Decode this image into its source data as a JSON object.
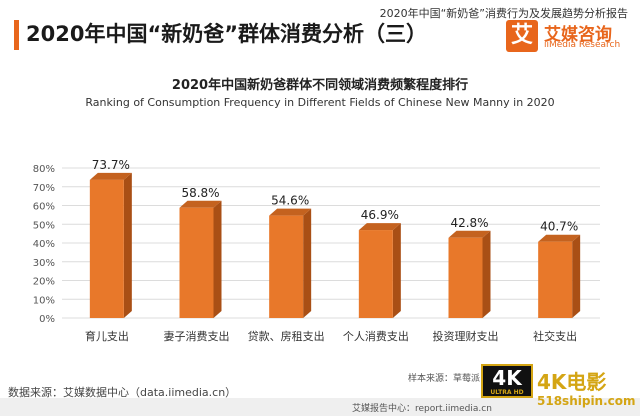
{
  "header": {
    "title": "2020年中国“新奶爸”群体消费分析（三）",
    "report_title": "2020年中国“新奶爸”消费行为及发展趋势分析报告",
    "logo_name": "艾媒咨询",
    "logo_en": "iiMedia Research",
    "logo_mark": "艾"
  },
  "chart_data": {
    "type": "bar",
    "title": "2020年中国新奶爸群体不同领域消费频繁程度排行",
    "subtitle": "Ranking of Consumption Frequency in Different Fields of Chinese New Manny in 2020",
    "categories": [
      "育儿支出",
      "妻子消费支出",
      "贷款、房租支出",
      "个人消费支出",
      "投资理财支出",
      "社交支出"
    ],
    "values": [
      73.7,
      58.8,
      54.6,
      46.9,
      42.8,
      40.7
    ],
    "value_labels": [
      "73.7%",
      "58.8%",
      "54.6%",
      "46.9%",
      "42.8%",
      "40.7%"
    ],
    "yticks": [
      "0%",
      "10%",
      "20%",
      "30%",
      "40%",
      "50%",
      "60%",
      "70%",
      "80%"
    ],
    "ylim": [
      0,
      80
    ],
    "grid": true,
    "bar_color": "#e8782a",
    "bar_side_color": "#a94f15",
    "bar_top_color": "#c4621f"
  },
  "footer": {
    "source": "数据来源：艾媒数据中心（data.iimedia.cn）",
    "sample": "样本来源：草莓派",
    "report_center": "艾媒报告中心：report.iimedia.cn"
  },
  "watermark": {
    "badge": "4K",
    "badge_sub": "ULTRA HD",
    "text": "4K电影",
    "site": "518shipin.com"
  }
}
